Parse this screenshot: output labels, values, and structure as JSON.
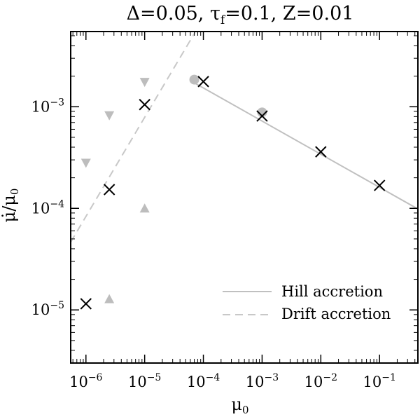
{
  "chart_data": {
    "type": "scatter",
    "title": "Δ=0.05, τ_f=0.1, Z=0.01",
    "title_parts": {
      "delta": "Δ=0.05, ",
      "tau": "τ",
      "tau_sub": "f",
      "tau_rest": "=0.1, Z=0.01"
    },
    "xlabel": "μ",
    "xlabel_sub": "0",
    "ylabel": "μ̇/μ",
    "ylabel_sub": "0",
    "x_scale": "log",
    "y_scale": "log",
    "xlim": [
      5.5e-07,
      0.45
    ],
    "ylim": [
      3e-06,
      0.0055
    ],
    "x_ticks": [
      {
        "value": 1e-06,
        "base": "10",
        "exp": "−6"
      },
      {
        "value": 1e-05,
        "base": "10",
        "exp": "−5"
      },
      {
        "value": 0.0001,
        "base": "10",
        "exp": "−4"
      },
      {
        "value": 0.001,
        "base": "10",
        "exp": "−3"
      },
      {
        "value": 0.01,
        "base": "10",
        "exp": "−2"
      },
      {
        "value": 0.1,
        "base": "10",
        "exp": "−1"
      }
    ],
    "y_ticks": [
      {
        "value": 1e-05,
        "base": "10",
        "exp": "−5"
      },
      {
        "value": 0.0001,
        "base": "10",
        "exp": "−4"
      },
      {
        "value": 0.001,
        "base": "10",
        "exp": "−3"
      }
    ],
    "series": [
      {
        "name": "Hill accretion",
        "kind": "line",
        "style": "solid",
        "color": "#c0c0c0",
        "x": [
          7e-05,
          0.45
        ],
        "y": [
          0.00172,
          9.85e-05
        ]
      },
      {
        "name": "Drift accretion",
        "kind": "line",
        "style": "dashed",
        "color": "#c8c8c8",
        "x": [
          5.5e-07,
          7.2e-05
        ],
        "y": [
          4.65e-05,
          0.0054
        ]
      },
      {
        "kind": "markers",
        "marker": "x",
        "color": "#000000",
        "x": [
          1e-06,
          2.5e-06,
          1e-05,
          0.0001,
          0.001,
          0.01,
          0.1
        ],
        "y": [
          1.15e-05,
          0.000153,
          0.00105,
          0.00177,
          0.00081,
          0.00036,
          0.000168
        ]
      },
      {
        "kind": "markers",
        "marker": "triangle-down",
        "color": "#bdbdbd",
        "x": [
          1e-06,
          2.5e-06,
          1e-05
        ],
        "y": [
          0.00028,
          0.00082,
          0.00175
        ]
      },
      {
        "kind": "markers",
        "marker": "triangle-up",
        "color": "#bdbdbd",
        "x": [
          2.5e-06,
          1e-05
        ],
        "y": [
          1.28e-05,
          0.0001
        ]
      },
      {
        "kind": "markers",
        "marker": "circle",
        "color": "#bdbdbd",
        "x": [
          7e-05,
          0.001
        ],
        "y": [
          0.00185,
          0.00088
        ]
      }
    ],
    "legend": {
      "placement": "bottom-right",
      "entries": [
        "Hill accretion",
        "Drift accretion"
      ]
    },
    "grid": false
  }
}
